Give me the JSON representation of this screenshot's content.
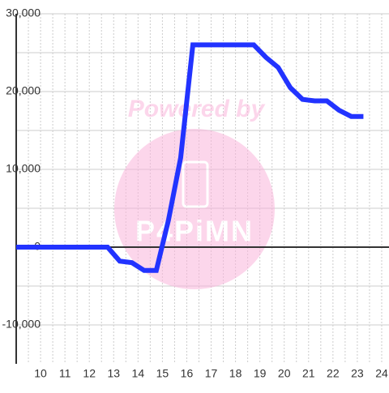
{
  "chart_data": {
    "type": "line",
    "watermark": {
      "text": "Powered by",
      "logo": "P4PiMN"
    },
    "x": [
      9,
      12.75,
      13.25,
      13.75,
      14.25,
      14.75,
      15.25,
      15.75,
      16.25,
      18.75,
      19.25,
      19.75,
      20.25,
      20.75,
      21.25,
      21.75,
      22.25,
      22.75,
      23.25
    ],
    "series": [
      {
        "color": "#2233ff",
        "values": [
          0,
          0,
          -1800,
          -2000,
          -3000,
          -3000,
          3500,
          11500,
          26000,
          26000,
          24400,
          23100,
          20500,
          19000,
          18800,
          18800,
          17600,
          16800,
          16800
        ]
      }
    ],
    "xlim": [
      9,
      24.3
    ],
    "xticks": [
      10,
      11,
      12,
      13,
      14,
      15,
      16,
      17,
      18,
      19,
      20,
      21,
      22,
      23,
      24
    ],
    "minor_xticks": [
      9.5,
      10.5,
      11.5,
      12.5,
      13.5,
      14.5,
      15.5,
      16.5,
      17.5,
      18.5,
      19.5,
      20.5,
      21.5,
      22.5,
      23.5
    ],
    "ylim": [
      -15000,
      30000
    ],
    "yticks": [
      {
        "value": -10000,
        "label": "-10,000"
      },
      0,
      {
        "value": 10000,
        "label": "10,000"
      },
      {
        "value": 20000,
        "label": "20,000"
      },
      {
        "value": 30000,
        "label": "30,000"
      }
    ],
    "minor_yticks": [
      -5000,
      5000,
      15000,
      25000
    ],
    "grid": true
  }
}
